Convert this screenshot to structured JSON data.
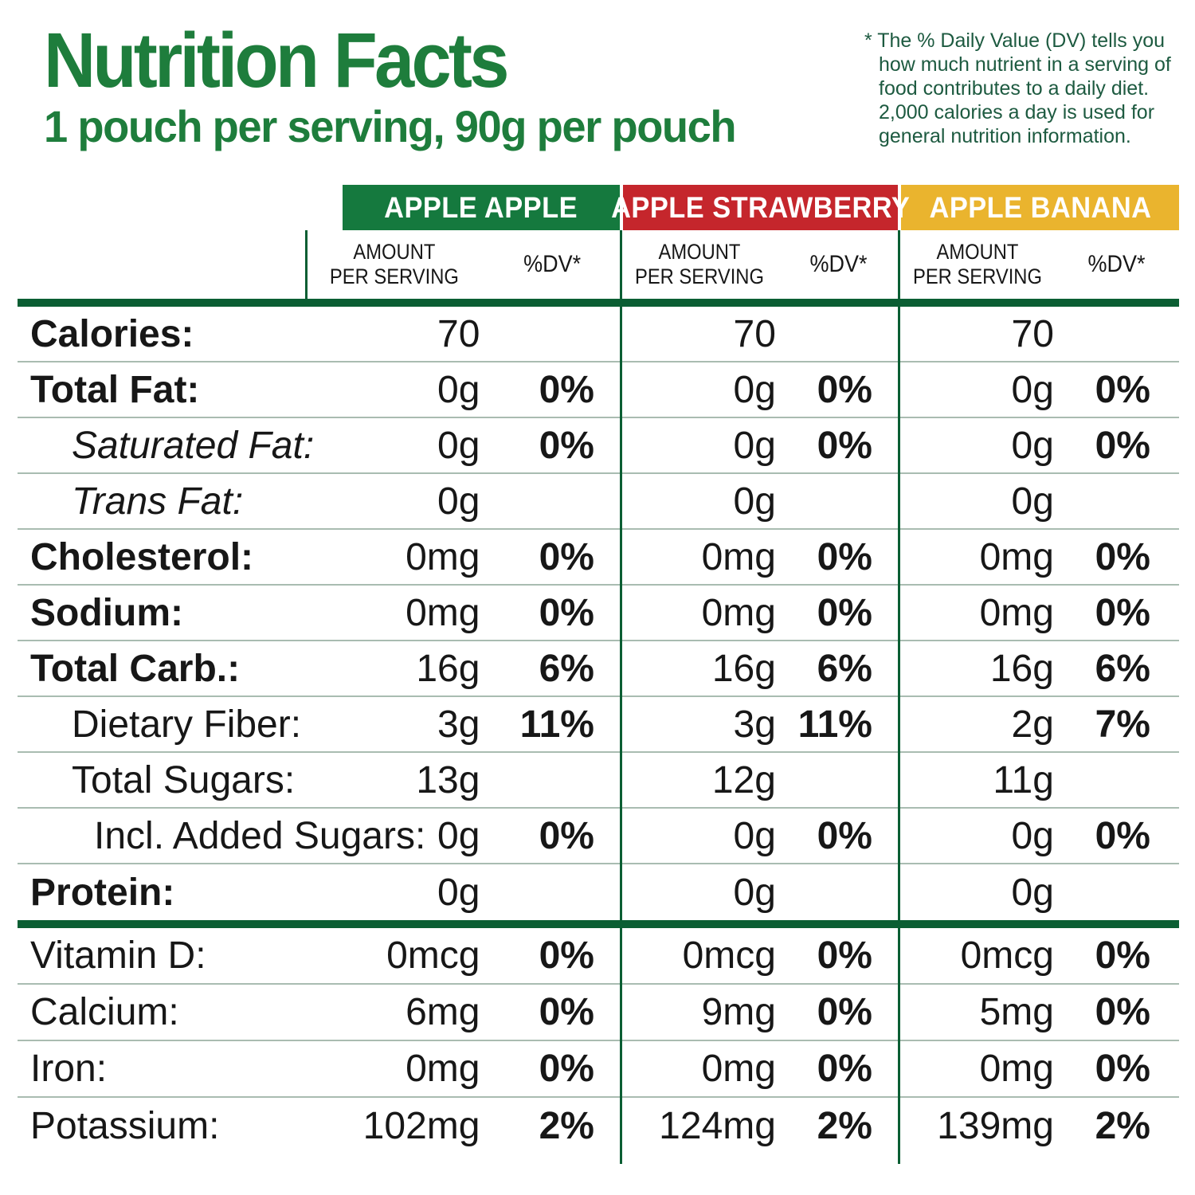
{
  "page": {
    "title": "Nutrition Facts",
    "subtitle": "1 pouch per serving, 90g per pouch",
    "disclaimer_lines": [
      "* The % Daily Value (DV) tells you",
      "how much nutrient in a serving of",
      "food contributes to a daily diet.",
      "2,000 calories a day is used for",
      "general nutrition information."
    ]
  },
  "colors": {
    "brand_green": "#1e7d3c",
    "band_green": "#15793e",
    "band_red": "#c5262c",
    "band_yellow": "#eab42e",
    "rule_dark_green": "#0b5e33",
    "separator_gray_green": "#a9bcb1",
    "disclaimer_green": "#1d5a40"
  },
  "flavors": [
    {
      "name": "APPLE APPLE",
      "color": "#15793e"
    },
    {
      "name": "APPLE STRAWBERRY",
      "color": "#c5262c"
    },
    {
      "name": "APPLE BANANA",
      "color": "#eab42e"
    }
  ],
  "subheader": {
    "amount_line1": "AMOUNT",
    "amount_line2": "PER SERVING",
    "dv": "%DV*"
  },
  "nutrients": [
    {
      "label": "Calories:",
      "style": "bold",
      "values": [
        [
          "70",
          ""
        ],
        [
          "70",
          ""
        ],
        [
          "70",
          ""
        ]
      ]
    },
    {
      "label": "Total Fat:",
      "style": "bold",
      "values": [
        [
          "0g",
          "0%"
        ],
        [
          "0g",
          "0%"
        ],
        [
          "0g",
          "0%"
        ]
      ]
    },
    {
      "label": "Saturated Fat:",
      "style": "italic-indent",
      "values": [
        [
          "0g",
          "0%"
        ],
        [
          "0g",
          "0%"
        ],
        [
          "0g",
          "0%"
        ]
      ]
    },
    {
      "label": "Trans Fat:",
      "style": "italic-indent",
      "values": [
        [
          "0g",
          ""
        ],
        [
          "0g",
          ""
        ],
        [
          "0g",
          ""
        ]
      ]
    },
    {
      "label": "Cholesterol:",
      "style": "bold",
      "values": [
        [
          "0mg",
          "0%"
        ],
        [
          "0mg",
          "0%"
        ],
        [
          "0mg",
          "0%"
        ]
      ]
    },
    {
      "label": "Sodium:",
      "style": "bold",
      "values": [
        [
          "0mg",
          "0%"
        ],
        [
          "0mg",
          "0%"
        ],
        [
          "0mg",
          "0%"
        ]
      ]
    },
    {
      "label": "Total Carb.:",
      "style": "bold",
      "values": [
        [
          "16g",
          "6%"
        ],
        [
          "16g",
          "6%"
        ],
        [
          "16g",
          "6%"
        ]
      ]
    },
    {
      "label": "Dietary Fiber:",
      "style": "indent",
      "values": [
        [
          "3g",
          "11%"
        ],
        [
          "3g",
          "11%"
        ],
        [
          "2g",
          "7%"
        ]
      ]
    },
    {
      "label": "Total Sugars:",
      "style": "indent",
      "values": [
        [
          "13g",
          ""
        ],
        [
          "12g",
          ""
        ],
        [
          "11g",
          ""
        ]
      ]
    },
    {
      "label": "Incl. Added Sugars:",
      "style": "indent2",
      "values": [
        [
          "0g",
          "0%"
        ],
        [
          "0g",
          "0%"
        ],
        [
          "0g",
          "0%"
        ]
      ]
    },
    {
      "label": "Protein:",
      "style": "bold",
      "values": [
        [
          "0g",
          ""
        ],
        [
          "0g",
          ""
        ],
        [
          "0g",
          ""
        ]
      ]
    }
  ],
  "minerals": [
    {
      "label": "Vitamin D:",
      "style": "plain",
      "values": [
        [
          "0mcg",
          "0%"
        ],
        [
          "0mcg",
          "0%"
        ],
        [
          "0mcg",
          "0%"
        ]
      ]
    },
    {
      "label": "Calcium:",
      "style": "plain",
      "values": [
        [
          "6mg",
          "0%"
        ],
        [
          "9mg",
          "0%"
        ],
        [
          "5mg",
          "0%"
        ]
      ]
    },
    {
      "label": "Iron:",
      "style": "plain",
      "values": [
        [
          "0mg",
          "0%"
        ],
        [
          "0mg",
          "0%"
        ],
        [
          "0mg",
          "0%"
        ]
      ]
    },
    {
      "label": "Potassium:",
      "style": "plain",
      "values": [
        [
          "102mg",
          "2%"
        ],
        [
          "124mg",
          "2%"
        ],
        [
          "139mg",
          "2%"
        ]
      ]
    }
  ]
}
